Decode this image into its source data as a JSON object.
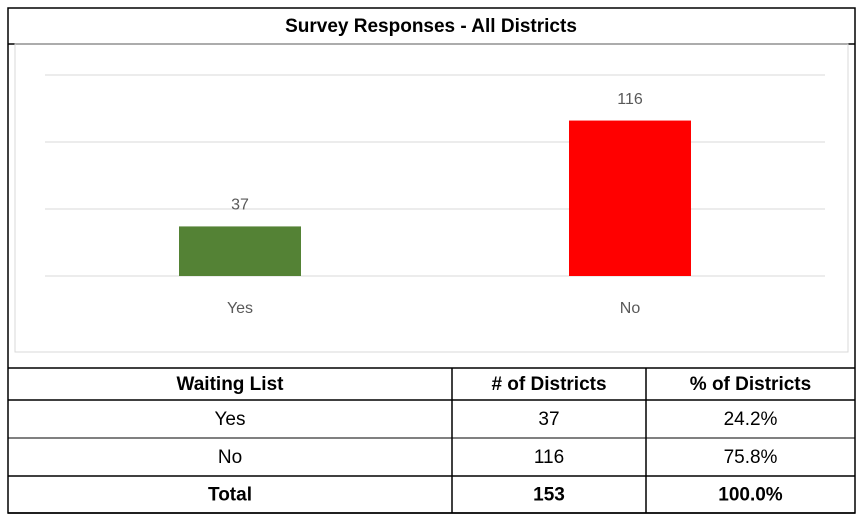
{
  "chart_data": {
    "type": "bar",
    "title": "Survey Responses - All Districts",
    "categories": [
      "Yes",
      "No"
    ],
    "values": [
      37,
      116
    ],
    "colors": [
      "#548235",
      "#ff0000"
    ],
    "ylim": [
      0,
      150
    ],
    "yticks": [
      0,
      50,
      100,
      150
    ],
    "grid": true
  },
  "table": {
    "header": [
      "Waiting List",
      "# of Districts",
      "% of Districts"
    ],
    "rows": [
      [
        "Yes",
        "37",
        "24.2%"
      ],
      [
        "No",
        "116",
        "75.8%"
      ]
    ],
    "total": [
      "Total",
      "153",
      "100.0%"
    ]
  }
}
